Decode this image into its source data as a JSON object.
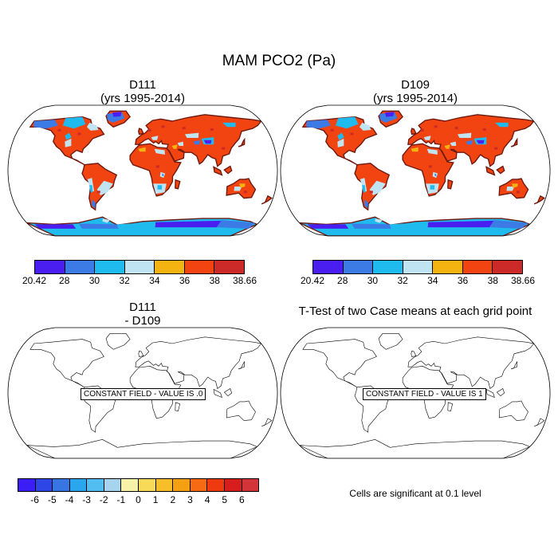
{
  "page": {
    "title": "MAM PCO2 (Pa)"
  },
  "panels": {
    "top_left": {
      "title_line1": "D111",
      "title_line2": "(yrs 1995-2014)"
    },
    "top_right": {
      "title_line1": "D109",
      "title_line2": "(yrs 1995-2014)"
    },
    "bottom_left": {
      "title_line1": "D111",
      "title_line2": "- D109",
      "field_label": "CONSTANT FIELD - VALUE IS .0"
    },
    "bottom_right": {
      "title": "T-Test of two Case means at each grid point",
      "field_label": "CONSTANT FIELD - VALUE IS 1"
    }
  },
  "colorbar_top": {
    "colors": [
      "#4a1ef0",
      "#3c7ae6",
      "#1fbbee",
      "#c0e4f2",
      "#f5b312",
      "#f24410",
      "#cc2a28"
    ],
    "labels": [
      "20.42",
      "28",
      "30",
      "32",
      "34",
      "36",
      "38",
      "38.66"
    ]
  },
  "colorbar_diff": {
    "colors": [
      "#3a1ef5",
      "#2e46e6",
      "#3675e2",
      "#2aa6ef",
      "#52bdf0",
      "#a6d4ee",
      "#f6f2a8",
      "#f7da58",
      "#f7be2a",
      "#f5a012",
      "#f56a12",
      "#ef3a10",
      "#d81e1c",
      "#d2343a"
    ],
    "labels": [
      "-6",
      "-5",
      "-4",
      "-3",
      "-2",
      "-1",
      "0",
      "1",
      "2",
      "3",
      "4",
      "5",
      "6"
    ]
  },
  "significance_note": "Cells are significant at 0.1 level"
}
